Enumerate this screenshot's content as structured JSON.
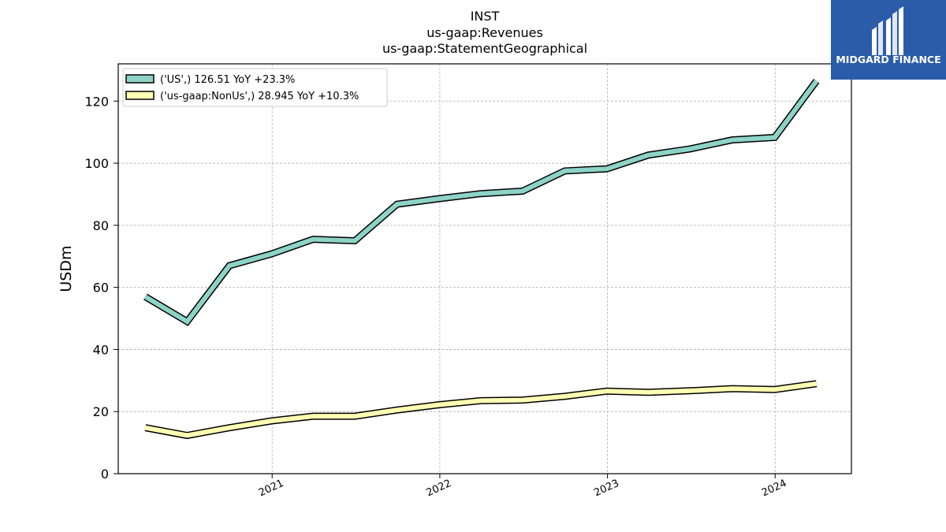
{
  "chart_data": {
    "type": "line",
    "title": [
      "INST",
      "us-gaap:Revenues",
      "us-gaap:StatementGeographical"
    ],
    "ylabel": "USDm",
    "xlabel": "",
    "ylim": [
      0,
      132
    ],
    "xlim": [
      "2020-02-01",
      "2024-06-15"
    ],
    "yticks": [
      0,
      20,
      40,
      60,
      80,
      100,
      120
    ],
    "xticks": [
      {
        "date": "2021-01-01",
        "label": "2021"
      },
      {
        "date": "2022-01-01",
        "label": "2022"
      },
      {
        "date": "2023-01-01",
        "label": "2023"
      },
      {
        "date": "2024-01-01",
        "label": "2024"
      }
    ],
    "grid": true,
    "legend_position": "top-left",
    "x": [
      "2020-03-31",
      "2020-06-30",
      "2020-09-30",
      "2020-12-31",
      "2021-03-31",
      "2021-06-30",
      "2021-09-30",
      "2021-12-31",
      "2022-03-31",
      "2022-06-30",
      "2022-09-30",
      "2022-12-31",
      "2023-03-31",
      "2023-06-30",
      "2023-09-30",
      "2023-12-31",
      "2024-03-31"
    ],
    "series": [
      {
        "name": "('US',) 126.51 YoY +23.3%",
        "color": "#8dd3c7",
        "values": [
          57.0,
          49.0,
          67.0,
          70.8,
          75.5,
          75.0,
          86.8,
          88.6,
          90.2,
          91.0,
          97.5,
          98.2,
          102.6,
          104.6,
          107.5,
          108.3,
          126.5
        ]
      },
      {
        "name": "('us-gaap:NonUs',) 28.945 YoY +10.3%",
        "color": "#ffffb3",
        "values": [
          14.8,
          12.3,
          14.8,
          17.0,
          18.5,
          18.5,
          20.5,
          22.2,
          23.5,
          23.7,
          24.9,
          26.6,
          26.2,
          26.7,
          27.4,
          27.1,
          29.0
        ]
      }
    ]
  },
  "logo": {
    "text": "MIDGARD FINANCE",
    "color": "#2a5caa"
  }
}
